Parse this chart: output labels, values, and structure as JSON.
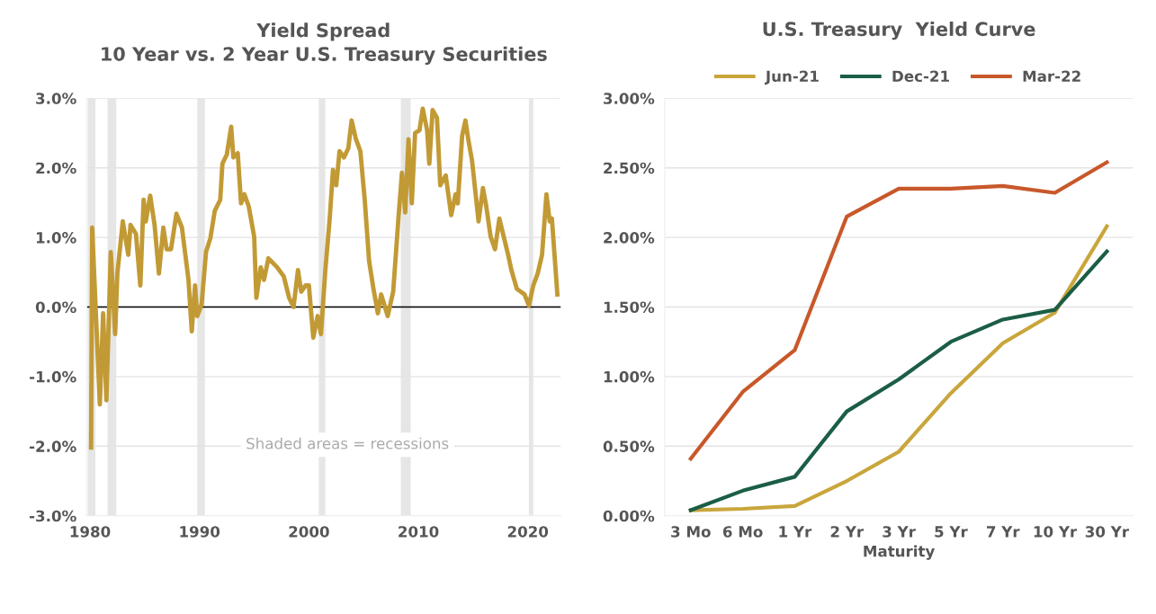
{
  "chart_data": [
    {
      "type": "line",
      "title": "Yield Spread",
      "subtitle": "10 Year vs. 2 Year U.S. Treasury Securities",
      "series": [
        {
          "color": "#c29a35",
          "x": [
            1980.1,
            1980.2,
            1980.9,
            1981.2,
            1981.5,
            1981.9,
            1982.3,
            1982.5,
            1983.0,
            1983.5,
            1983.7,
            1984.2,
            1984.6,
            1984.9,
            1985.1,
            1985.5,
            1985.9,
            1986.3,
            1986.7,
            1987.0,
            1987.4,
            1987.9,
            1988.4,
            1989.0,
            1989.3,
            1989.6,
            1989.8,
            1990.2,
            1990.6,
            1991.0,
            1991.4,
            1991.9,
            1992.1,
            1992.5,
            1992.9,
            1993.1,
            1993.5,
            1993.8,
            1994.1,
            1994.5,
            1995.0,
            1995.2,
            1995.6,
            1995.9,
            1996.3,
            1997.1,
            1997.7,
            1998.2,
            1998.6,
            1999.0,
            1999.3,
            1999.7,
            2000.0,
            2000.4,
            2000.8,
            2001.1,
            2001.5,
            2001.9,
            2002.2,
            2002.5,
            2002.8,
            2003.2,
            2003.6,
            2003.9,
            2004.3,
            2004.7,
            2005.1,
            2005.5,
            2005.9,
            2006.3,
            2006.6,
            2007.2,
            2007.7,
            2008.2,
            2008.5,
            2008.8,
            2009.1,
            2009.4,
            2009.7,
            2010.1,
            2010.4,
            2010.8,
            2011.0,
            2011.3,
            2011.7,
            2012.0,
            2012.5,
            2013.0,
            2013.4,
            2013.6,
            2014.0,
            2014.3,
            2014.6,
            2014.9,
            2015.5,
            2015.9,
            2016.2,
            2016.6,
            2017.0,
            2017.4,
            2017.8,
            2018.2,
            2018.5,
            2019.0,
            2019.7,
            2020.1,
            2020.5,
            2020.9,
            2021.3,
            2021.7,
            2022.0,
            2022.2,
            2022.7
          ],
          "values": [
            -2.02,
            1.14,
            -1.4,
            -0.09,
            -1.34,
            0.79,
            -0.39,
            0.48,
            1.23,
            0.75,
            1.18,
            1.05,
            0.31,
            1.54,
            1.23,
            1.6,
            1.18,
            0.48,
            1.14,
            0.83,
            0.83,
            1.34,
            1.14,
            0.39,
            -0.35,
            0.31,
            -0.13,
            0.04,
            0.79,
            0.99,
            1.38,
            1.54,
            2.06,
            2.19,
            2.59,
            2.15,
            2.21,
            1.49,
            1.62,
            1.45,
            1.01,
            0.13,
            0.57,
            0.39,
            0.7,
            0.57,
            0.44,
            0.13,
            0.0,
            0.53,
            0.22,
            0.31,
            0.31,
            -0.44,
            -0.13,
            -0.39,
            0.53,
            1.27,
            1.97,
            1.75,
            2.24,
            2.15,
            2.28,
            2.68,
            2.41,
            2.24,
            1.54,
            0.66,
            0.26,
            -0.09,
            0.18,
            -0.13,
            0.22,
            1.32,
            1.93,
            1.36,
            2.41,
            1.49,
            2.5,
            2.54,
            2.85,
            2.54,
            2.06,
            2.83,
            2.72,
            1.75,
            1.89,
            1.32,
            1.62,
            1.49,
            2.46,
            2.68,
            2.37,
            2.11,
            1.23,
            1.71,
            1.45,
            1.01,
            0.83,
            1.27,
            1.01,
            0.75,
            0.53,
            0.26,
            0.18,
            0.02,
            0.31,
            0.48,
            0.75,
            1.62,
            1.23,
            1.27,
            0.18
          ]
        }
      ],
      "xlim": [
        1979.7,
        2023.0
      ],
      "xticks": [
        1980,
        1990,
        2000,
        2010,
        2020
      ],
      "ylim": [
        -3,
        3
      ],
      "yticks": [
        {
          "value": -3,
          "label": "-3.0%"
        },
        {
          "value": -2,
          "label": "-2.0%"
        },
        {
          "value": -1,
          "label": "-1.0%"
        },
        {
          "value": 0,
          "label": "0.0%"
        },
        {
          "value": 1,
          "label": "1.0%"
        },
        {
          "value": 2,
          "label": "2.0%"
        },
        {
          "value": 3,
          "label": "3.0%"
        }
      ],
      "grid": "y",
      "ref_lines": [
        {
          "axis": "y",
          "value": 0,
          "color": "#000000"
        }
      ],
      "bands": [
        {
          "axis": "x",
          "from": 1979.8,
          "to": 1980.5,
          "color": "#e6e6e6"
        },
        {
          "axis": "x",
          "from": 1981.6,
          "to": 1982.4,
          "color": "#e6e6e6"
        },
        {
          "axis": "x",
          "from": 1989.8,
          "to": 1990.5,
          "color": "#e6e6e6"
        },
        {
          "axis": "x",
          "from": 2000.9,
          "to": 2001.5,
          "color": "#e6e6e6"
        },
        {
          "axis": "x",
          "from": 2008.4,
          "to": 2009.3,
          "color": "#e6e6e6"
        },
        {
          "axis": "x",
          "from": 2020.1,
          "to": 2020.5,
          "color": "#e6e6e6"
        }
      ],
      "annotations": [
        "Shaded areas = recessions"
      ]
    },
    {
      "type": "line",
      "title": "U.S. Treasury  Yield Curve",
      "xlabel": "Maturity",
      "categories": [
        "3 Mo",
        "6 Mo",
        "1 Yr",
        "2 Yr",
        "3 Yr",
        "5 Yr",
        "7 Yr",
        "10 Yr",
        "30 Yr"
      ],
      "series": [
        {
          "name": "Jun-21",
          "color": "#c9a63c",
          "values": [
            0.04,
            0.05,
            0.07,
            0.25,
            0.46,
            0.88,
            1.24,
            1.46,
            2.08
          ]
        },
        {
          "name": "Dec-21",
          "color": "#1b5e45",
          "values": [
            0.04,
            0.18,
            0.28,
            0.75,
            0.98,
            1.25,
            1.41,
            1.48,
            1.9
          ]
        },
        {
          "name": "Mar-22",
          "color": "#c8582a",
          "values": [
            0.41,
            0.89,
            1.19,
            2.15,
            2.35,
            2.35,
            2.37,
            2.32,
            2.54
          ]
        }
      ],
      "ylim": [
        0,
        3
      ],
      "yticks": [
        {
          "value": 0,
          "label": "0.00%"
        },
        {
          "value": 0.5,
          "label": "0.50%"
        },
        {
          "value": 1,
          "label": "1.00%"
        },
        {
          "value": 1.5,
          "label": "1.50%"
        },
        {
          "value": 2,
          "label": "2.00%"
        },
        {
          "value": 2.5,
          "label": "2.50%"
        },
        {
          "value": 3,
          "label": "3.00%"
        }
      ],
      "grid": "y",
      "legend": "top"
    }
  ]
}
